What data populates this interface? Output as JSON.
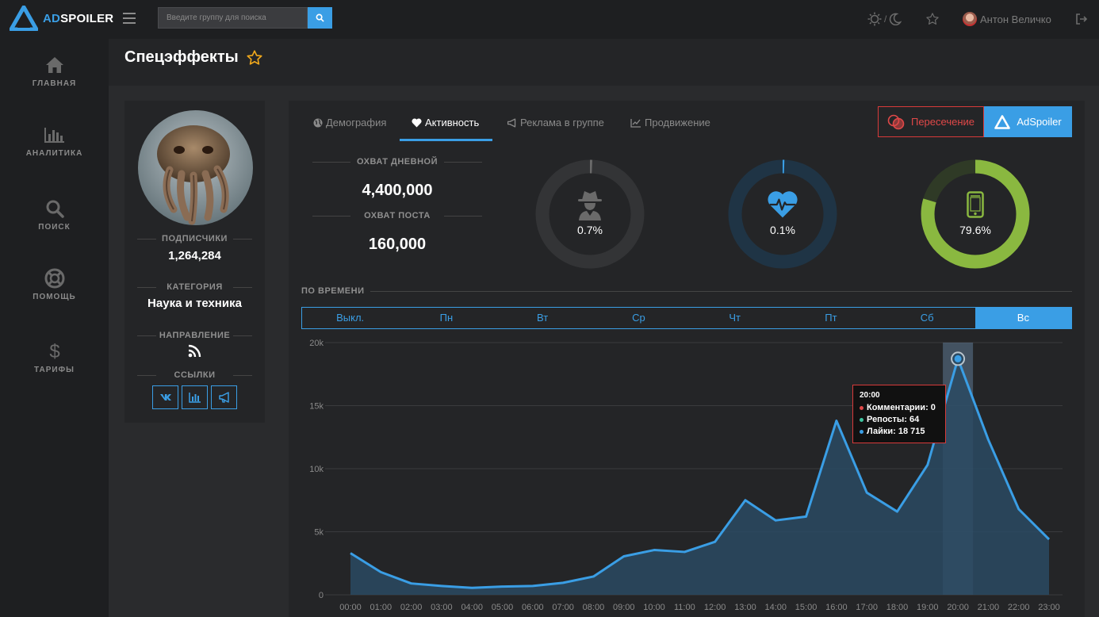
{
  "brand": {
    "prefix": "AD",
    "name": "SPOILER"
  },
  "search": {
    "placeholder": "Введите группу для поиска"
  },
  "header": {
    "theme_sep": "/",
    "user_name": "Антон Величко"
  },
  "sidebar": {
    "items": [
      {
        "label": "ГЛАВНАЯ",
        "icon": "home-icon"
      },
      {
        "label": "АНАЛИТИКА",
        "icon": "analytics-icon"
      },
      {
        "label": "ПОИСК",
        "icon": "search-icon"
      },
      {
        "label": "ПОМОЩЬ",
        "icon": "help-icon"
      },
      {
        "label": "ТАРИФЫ",
        "icon": "dollar-icon"
      }
    ]
  },
  "page": {
    "title": "Спецэффекты"
  },
  "profile": {
    "subscribers_label": "ПОДПИСЧИКИ",
    "subscribers": "1,264,284",
    "category_label": "КАТЕГОРИЯ",
    "category": "Наука и техника",
    "direction_label": "НАПРАВЛЕНИЕ",
    "links_label": "ССЫЛКИ"
  },
  "tabs": [
    {
      "label": "Демография",
      "icon": "globe-icon"
    },
    {
      "label": "Активность",
      "icon": "heart-icon"
    },
    {
      "label": "Реклама в группе",
      "icon": "megaphone-icon"
    },
    {
      "label": "Продвижение",
      "icon": "line-chart-icon"
    }
  ],
  "buttons": {
    "cross": "Пересечение",
    "adspoiler": "AdSpoiler"
  },
  "stats": {
    "daily_label": "ОХВАТ ДНЕВНОЙ",
    "daily": "4,400,000",
    "post_label": "ОХВАТ ПОСТА",
    "post": "160,000"
  },
  "donuts": [
    {
      "icon": "spy-icon",
      "pct_text": "0.7%",
      "value": 0.007,
      "color": "#6a6a6a",
      "track": "#333436"
    },
    {
      "icon": "heart-pulse-icon",
      "pct_text": "0.1%",
      "value": 0.001,
      "color": "#3a9ee5",
      "track": "#1f3445"
    },
    {
      "icon": "phone-icon",
      "pct_text": "79.6%",
      "value": 0.796,
      "color": "#8ab840",
      "track": "#2f3a26"
    }
  ],
  "time": {
    "label": "ПО ВРЕМЕНИ",
    "days": [
      "Выкл.",
      "Пн",
      "Вт",
      "Ср",
      "Чт",
      "Пт",
      "Сб",
      "Вс"
    ],
    "active_day": "Вс"
  },
  "tooltip": {
    "time": "20:00",
    "rows": [
      {
        "text": "Комментарии: 0",
        "color": "#e04848"
      },
      {
        "text": "Репосты: 64",
        "color": "#3ec4a0"
      },
      {
        "text": "Лайки: 18 715",
        "color": "#3a9ee5"
      }
    ]
  },
  "chart_data": {
    "type": "area",
    "categories": [
      "00:00",
      "01:00",
      "02:00",
      "03:00",
      "04:00",
      "05:00",
      "06:00",
      "07:00",
      "08:00",
      "09:00",
      "10:00",
      "11:00",
      "12:00",
      "13:00",
      "14:00",
      "15:00",
      "16:00",
      "17:00",
      "18:00",
      "19:00",
      "20:00",
      "21:00",
      "22:00",
      "23:00"
    ],
    "series": [
      {
        "name": "Лайки",
        "values": [
          3300,
          1800,
          900,
          700,
          550,
          650,
          700,
          950,
          1450,
          3050,
          3550,
          3400,
          4200,
          7500,
          5900,
          6200,
          13800,
          8100,
          6600,
          10300,
          18715,
          12300,
          6800,
          4400
        ]
      }
    ],
    "ylim": [
      0,
      20000
    ],
    "yticks": [
      0,
      5000,
      10000,
      15000,
      20000
    ],
    "ytick_labels": [
      "0",
      "5k",
      "10k",
      "15k",
      "20k"
    ],
    "highlight_index": 20,
    "grid": true,
    "colors": {
      "line": "#3a9ee5",
      "fill": "#2a4a63",
      "highlight": "#6a8aa8"
    }
  }
}
